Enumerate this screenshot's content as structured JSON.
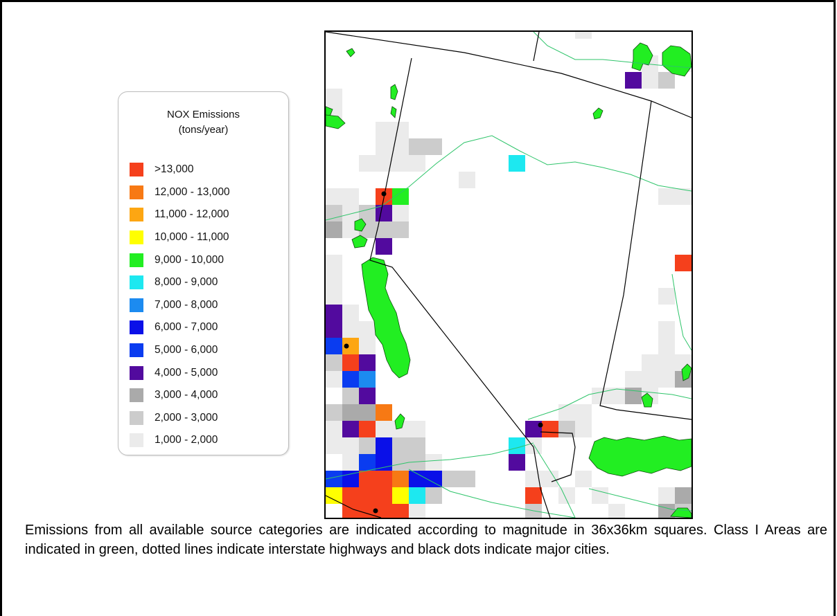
{
  "legend": {
    "title_line1": "NOX Emissions",
    "title_line2": "(tons/year)",
    "items": [
      {
        "label": ">13,000",
        "color": "#f5401c"
      },
      {
        "label": "12,000 - 13,000",
        "color": "#f77914"
      },
      {
        "label": "11,000 - 12,000",
        "color": "#fda612"
      },
      {
        "label": "10,000 - 11,000",
        "color": "#ffff00"
      },
      {
        "label": "9,000 - 10,000",
        "color": "#22ee22"
      },
      {
        "label": "8,000 - 9,000",
        "color": "#1de8f0"
      },
      {
        "label": "7,000 - 8,000",
        "color": "#1c8bf0"
      },
      {
        "label": "6,000 - 7,000",
        "color": "#0a10e8"
      },
      {
        "label": "5,000 - 6,000",
        "color": "#0a3cf0"
      },
      {
        "label": "4,000 - 5,000",
        "color": "#520a9e"
      },
      {
        "label": "3,000 - 4,000",
        "color": "#aaaaaa"
      },
      {
        "label": "2,000 - 3,000",
        "color": "#cccccc"
      },
      {
        "label": "1,000 - 2,000",
        "color": "#ebebeb"
      }
    ]
  },
  "map": {
    "colors": {
      "class1_area": "#22ee22",
      "highway": "#2ec46a",
      "boundary": "#000000",
      "city": "#000000"
    }
  },
  "caption": "Emissions from all available source categories are indicated according to magnitude in 36x36km squares.  Class I Areas are indicated in green, dotted lines indicate interstate highways and black dots indicate major cities."
}
